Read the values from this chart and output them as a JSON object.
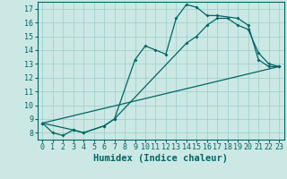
{
  "xlabel": "Humidex (Indice chaleur)",
  "ylabel": "",
  "bg_color": "#cce8e4",
  "grid_color": "#99cccc",
  "line_color": "#006666",
  "xlim": [
    -0.5,
    23.5
  ],
  "ylim": [
    7.5,
    17.5
  ],
  "xticks": [
    0,
    1,
    2,
    3,
    4,
    5,
    6,
    7,
    8,
    9,
    10,
    11,
    12,
    13,
    14,
    15,
    16,
    17,
    18,
    19,
    20,
    21,
    22,
    23
  ],
  "yticks": [
    8,
    9,
    10,
    11,
    12,
    13,
    14,
    15,
    16,
    17
  ],
  "line1_x": [
    0,
    1,
    2,
    3,
    4,
    6,
    7,
    9,
    10,
    11,
    12,
    13,
    14,
    15,
    16,
    17,
    19,
    20,
    21,
    22,
    23
  ],
  "line1_y": [
    8.7,
    8.0,
    7.8,
    8.2,
    8.0,
    8.5,
    9.0,
    13.3,
    14.3,
    14.0,
    13.7,
    16.3,
    17.3,
    17.1,
    16.5,
    16.5,
    16.3,
    15.8,
    13.3,
    12.8,
    12.8
  ],
  "line2_x": [
    0,
    3,
    4,
    6,
    7,
    14,
    15,
    16,
    17,
    18,
    19,
    20,
    21,
    22,
    23
  ],
  "line2_y": [
    8.7,
    8.2,
    8.0,
    8.5,
    9.0,
    14.5,
    15.0,
    15.8,
    16.3,
    16.3,
    15.8,
    15.5,
    13.8,
    13.0,
    12.8
  ],
  "line3_x": [
    0,
    23
  ],
  "line3_y": [
    8.7,
    12.8
  ],
  "tick_fontsize": 6,
  "label_fontsize": 7.5
}
